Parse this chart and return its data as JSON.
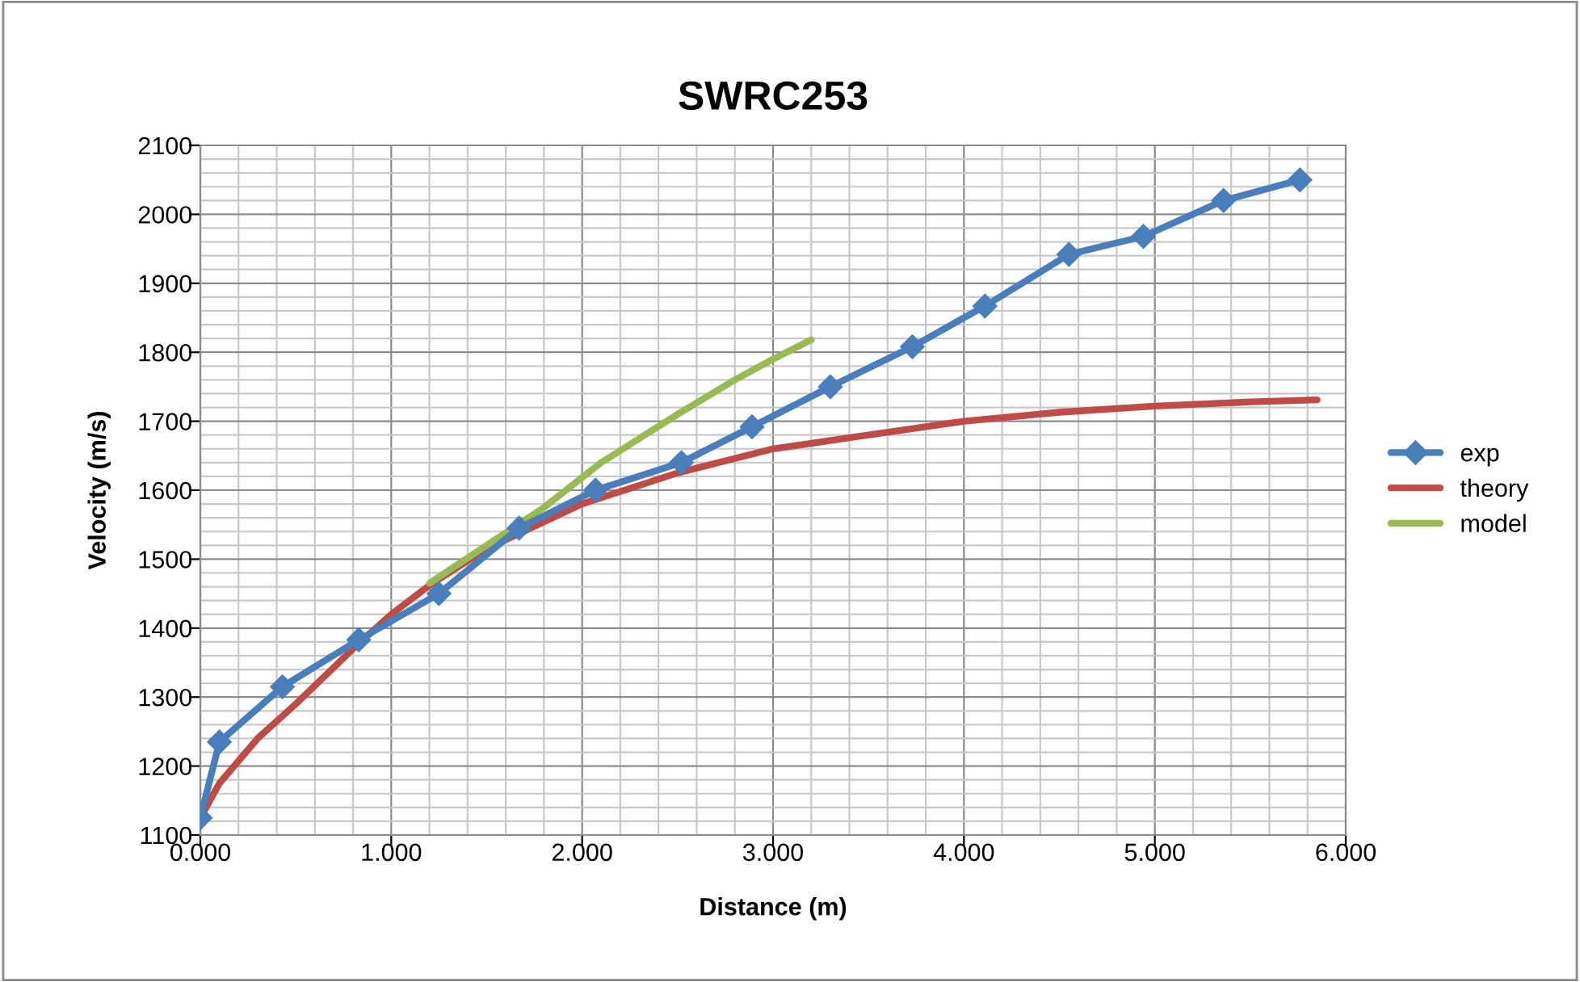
{
  "chart_data": {
    "type": "line",
    "title": "SWRC253",
    "xlabel": "Distance (m)",
    "ylabel": "Velocity (m/s)",
    "xlim": [
      0,
      6
    ],
    "ylim": [
      1100,
      2100
    ],
    "xticks": [
      {
        "value": 0,
        "label": "0.000"
      },
      {
        "value": 0.2,
        "label": null
      },
      {
        "value": 0.4,
        "label": null
      },
      {
        "value": 0.6,
        "label": null
      },
      {
        "value": 0.8,
        "label": null
      },
      {
        "value": 1,
        "label": "1.000"
      },
      {
        "value": 1.2,
        "label": null
      },
      {
        "value": 1.4,
        "label": null
      },
      {
        "value": 1.6,
        "label": null
      },
      {
        "value": 1.8,
        "label": null
      },
      {
        "value": 2,
        "label": "2.000"
      },
      {
        "value": 2.2,
        "label": null
      },
      {
        "value": 2.4,
        "label": null
      },
      {
        "value": 2.6,
        "label": null
      },
      {
        "value": 2.8,
        "label": null
      },
      {
        "value": 3,
        "label": "3.000"
      },
      {
        "value": 3.2,
        "label": null
      },
      {
        "value": 3.4,
        "label": null
      },
      {
        "value": 3.6,
        "label": null
      },
      {
        "value": 3.8,
        "label": null
      },
      {
        "value": 4,
        "label": "4.000"
      },
      {
        "value": 4.2,
        "label": null
      },
      {
        "value": 4.4,
        "label": null
      },
      {
        "value": 4.6,
        "label": null
      },
      {
        "value": 4.8,
        "label": null
      },
      {
        "value": 5,
        "label": "5.000"
      },
      {
        "value": 5.2,
        "label": null
      },
      {
        "value": 5.4,
        "label": null
      },
      {
        "value": 5.6,
        "label": null
      },
      {
        "value": 5.8,
        "label": null
      },
      {
        "value": 6,
        "label": "6.000"
      }
    ],
    "yticks": [
      1100,
      {
        "value": 1120,
        "label": null
      },
      {
        "value": 1140,
        "label": null
      },
      {
        "value": 1160,
        "label": null
      },
      {
        "value": 1180,
        "label": null
      },
      1200,
      {
        "value": 1220,
        "label": null
      },
      {
        "value": 1240,
        "label": null
      },
      {
        "value": 1260,
        "label": null
      },
      {
        "value": 1280,
        "label": null
      },
      1300,
      {
        "value": 1320,
        "label": null
      },
      {
        "value": 1340,
        "label": null
      },
      {
        "value": 1360,
        "label": null
      },
      {
        "value": 1380,
        "label": null
      },
      1400,
      {
        "value": 1420,
        "label": null
      },
      {
        "value": 1440,
        "label": null
      },
      {
        "value": 1460,
        "label": null
      },
      {
        "value": 1480,
        "label": null
      },
      1500,
      {
        "value": 1520,
        "label": null
      },
      {
        "value": 1540,
        "label": null
      },
      {
        "value": 1560,
        "label": null
      },
      {
        "value": 1580,
        "label": null
      },
      1600,
      {
        "value": 1620,
        "label": null
      },
      {
        "value": 1640,
        "label": null
      },
      {
        "value": 1660,
        "label": null
      },
      {
        "value": 1680,
        "label": null
      },
      1700,
      {
        "value": 1720,
        "label": null
      },
      {
        "value": 1740,
        "label": null
      },
      {
        "value": 1760,
        "label": null
      },
      {
        "value": 1780,
        "label": null
      },
      1800,
      {
        "value": 1820,
        "label": null
      },
      {
        "value": 1840,
        "label": null
      },
      {
        "value": 1860,
        "label": null
      },
      {
        "value": 1880,
        "label": null
      },
      1900,
      {
        "value": 1920,
        "label": null
      },
      {
        "value": 1940,
        "label": null
      },
      {
        "value": 1960,
        "label": null
      },
      {
        "value": 1980,
        "label": null
      },
      2000,
      {
        "value": 2020,
        "label": null
      },
      {
        "value": 2040,
        "label": null
      },
      {
        "value": 2060,
        "label": null
      },
      {
        "value": 2080,
        "label": null
      },
      2100
    ],
    "grid": true,
    "legend": "right",
    "series": [
      {
        "name": "exp",
        "color": "#4a7ebb",
        "marker": "diamond",
        "x": [
          0,
          0.1,
          0.43,
          0.83,
          1.25,
          1.67,
          2.07,
          2.52,
          2.89,
          3.3,
          3.73,
          4.11,
          4.55,
          4.94,
          5.36,
          5.76
        ],
        "values": [
          1125,
          1235,
          1315,
          1383,
          1450,
          1545,
          1600,
          1640,
          1692,
          1750,
          1808,
          1867,
          1942,
          1968,
          2020,
          2050
        ]
      },
      {
        "name": "theory",
        "color": "#be4b48",
        "marker": "none",
        "x": [
          0,
          0.1,
          0.3,
          0.5,
          0.8,
          1.0,
          1.2,
          1.5,
          2.0,
          2.5,
          3.0,
          3.5,
          4.0,
          4.5,
          5.0,
          5.5,
          5.85
        ],
        "values": [
          1125,
          1175,
          1240,
          1290,
          1370,
          1420,
          1462,
          1515,
          1580,
          1625,
          1660,
          1680,
          1700,
          1713,
          1722,
          1728,
          1731
        ]
      },
      {
        "name": "model",
        "color": "#98b954",
        "marker": "none",
        "x": [
          1.2,
          1.5,
          1.8,
          2.1,
          2.5,
          2.8,
          3.0,
          3.2
        ],
        "values": [
          1465,
          1520,
          1575,
          1640,
          1710,
          1760,
          1790,
          1818
        ]
      }
    ]
  }
}
